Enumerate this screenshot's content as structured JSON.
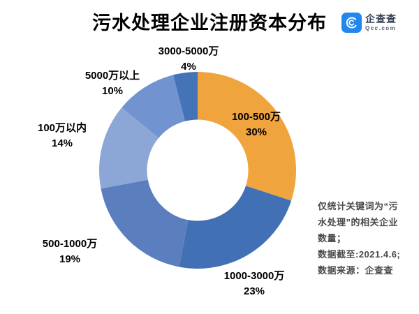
{
  "header": {
    "title": "污水处理企业注册资本分布",
    "logo": {
      "name": "企查查",
      "domain": "Qcc.com",
      "brand_color": "#2186F0"
    }
  },
  "chart_data": {
    "type": "pie",
    "subtype": "donut",
    "title": "污水处理企业注册资本分布",
    "unit": "%",
    "start_angle": "12 o'clock, clockwise",
    "legend_position": "none",
    "categories": [
      "100-500万",
      "1000-3000万",
      "500-1000万",
      "100万以内",
      "5000万以上",
      "3000-5000万"
    ],
    "values": [
      30,
      23,
      19,
      14,
      10,
      4
    ],
    "segments": [
      {
        "label": "100-500万",
        "value": 30,
        "pct": "30%",
        "color": "#EFA43E"
      },
      {
        "label": "1000-3000万",
        "value": 23,
        "pct": "23%",
        "color": "#4170B4"
      },
      {
        "label": "500-1000万",
        "value": 19,
        "pct": "19%",
        "color": "#5A7EBE"
      },
      {
        "label": "100万以内",
        "value": 14,
        "pct": "14%",
        "color": "#8CA7D6"
      },
      {
        "label": "5000万以上",
        "value": 10,
        "pct": "10%",
        "color": "#7193CF"
      },
      {
        "label": "3000-5000万",
        "value": 4,
        "pct": "4%",
        "color": "#4573B8"
      }
    ]
  },
  "notes": {
    "lines": [
      "仅统计关键词为“污",
      "水处理”的相关企业",
      "数量；",
      "数据截至:2021.4.6;",
      "数据来源：企查查"
    ]
  }
}
